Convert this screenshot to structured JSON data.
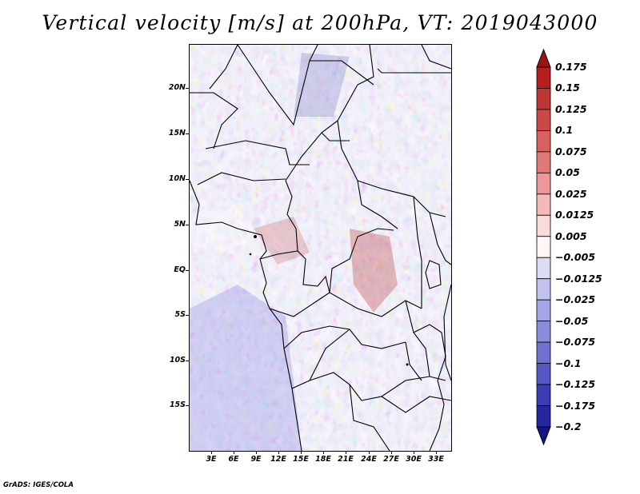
{
  "title": "Vertical velocity [m/s] at 200hPa, VT: 2019043000",
  "footer": "GrADS: IGES/COLA",
  "map": {
    "variable": "Vertical velocity",
    "units": "m/s",
    "level": "200hPa",
    "valid_time": "2019043000",
    "region": "Central Africa",
    "lat_range": [
      -20,
      25
    ],
    "lon_range": [
      0,
      35
    ],
    "lat_ticks": [
      "20N",
      "15N",
      "10N",
      "5N",
      "EQ",
      "5S",
      "10S",
      "15S"
    ],
    "lon_ticks": [
      "3E",
      "6E",
      "9E",
      "12E",
      "15E",
      "18E",
      "21E",
      "24E",
      "27E",
      "30E",
      "33E"
    ]
  },
  "colorbar": {
    "labels": [
      "0.175",
      "0.15",
      "0.125",
      "0.1",
      "0.075",
      "0.05",
      "0.025",
      "0.0125",
      "0.005",
      "−0.005",
      "−0.0125",
      "−0.025",
      "−0.05",
      "−0.075",
      "−0.1",
      "−0.125",
      "−0.175",
      "−0.2"
    ],
    "colors": [
      "#a01010",
      "#b42020",
      "#c03535",
      "#cc4848",
      "#d86060",
      "#e07878",
      "#ec9898",
      "#f4baba",
      "#fadada",
      "#fff6f6",
      "#dcdcf4",
      "#c2c2ee",
      "#a6a6e6",
      "#8c8cdc",
      "#7070d0",
      "#5656c4",
      "#3c3cb4",
      "#2626a0",
      "#141486"
    ]
  }
}
